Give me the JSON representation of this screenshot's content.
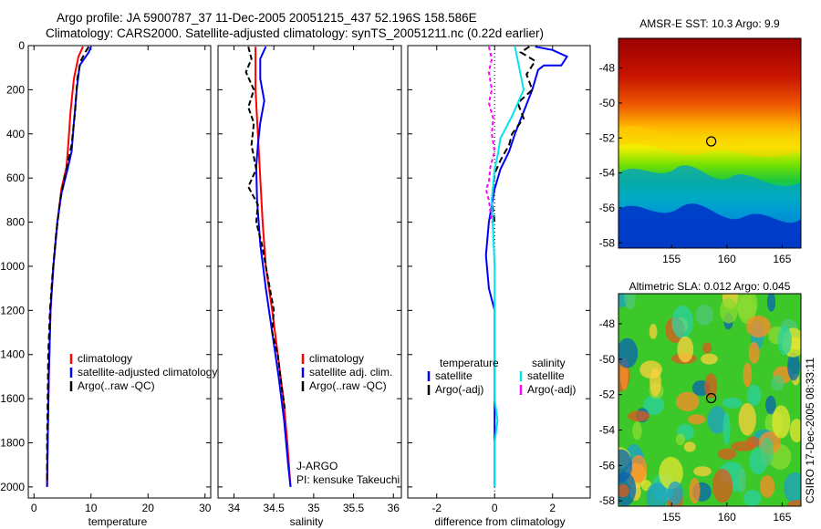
{
  "header": {
    "line1": "Argo profile: JA 5900787_37 11-Dec-2005 20051215_437 52.196S 158.586E",
    "line2": "Climatology: CARS2000. Satellite-adjusted climatology: synTS_20051211.nc (0.22d earlier)"
  },
  "colors": {
    "climatology": "#ff0000",
    "satellite": "#0000ff",
    "argo": "#000000",
    "sal_satellite": "#00e5ee",
    "sal_argo": "#ff00ff"
  },
  "chart_data": [
    {
      "type": "line",
      "id": "temperature",
      "xlabel": "temperature",
      "ylabel": "",
      "xlim": [
        -1,
        31
      ],
      "ylim": [
        2050,
        0
      ],
      "xticks": [
        0,
        10,
        20,
        30
      ],
      "yticks": [
        0,
        200,
        400,
        600,
        800,
        1000,
        1200,
        1400,
        1600,
        1800,
        2000
      ],
      "legend": {
        "placement": "bottom-right",
        "entries": [
          {
            "label": "climatology",
            "color_key": "climatology"
          },
          {
            "label": "satellite-adjusted climatology",
            "color_key": "satellite"
          },
          {
            "label": "Argo(..raw -QC)",
            "color_key": "argo"
          }
        ]
      },
      "series": [
        {
          "name": "climatology",
          "color_key": "climatology",
          "dash": "",
          "points": [
            [
              8.6,
              5
            ],
            [
              7.8,
              50
            ],
            [
              7.0,
              150
            ],
            [
              6.4,
              300
            ],
            [
              6.0,
              450
            ],
            [
              5.7,
              550
            ],
            [
              4.8,
              650
            ],
            [
              4.1,
              800
            ],
            [
              3.4,
              1000
            ],
            [
              2.9,
              1200
            ],
            [
              2.6,
              1500
            ],
            [
              2.4,
              1800
            ],
            [
              2.3,
              2000
            ]
          ]
        },
        {
          "name": "satellite-adjusted climatology",
          "color_key": "satellite",
          "dash": "",
          "points": [
            [
              10.0,
              5
            ],
            [
              9.6,
              30
            ],
            [
              8.0,
              90
            ],
            [
              7.5,
              200
            ],
            [
              7.0,
              350
            ],
            [
              6.6,
              480
            ],
            [
              5.8,
              570
            ],
            [
              4.8,
              670
            ],
            [
              4.1,
              800
            ],
            [
              3.4,
              1000
            ],
            [
              2.9,
              1200
            ],
            [
              2.6,
              1500
            ],
            [
              2.4,
              1800
            ],
            [
              2.3,
              2000
            ]
          ]
        },
        {
          "name": "Argo(..raw -QC)",
          "color_key": "argo",
          "dash": "7,4",
          "points": [
            [
              9.6,
              5
            ],
            [
              9.0,
              30
            ],
            [
              8.2,
              70
            ],
            [
              7.6,
              150
            ],
            [
              7.2,
              300
            ],
            [
              6.6,
              450
            ],
            [
              6.0,
              520
            ],
            [
              5.4,
              600
            ],
            [
              4.6,
              700
            ],
            [
              3.9,
              850
            ],
            [
              3.2,
              1050
            ],
            [
              2.8,
              1200
            ],
            [
              2.5,
              1400
            ],
            [
              2.4,
              1600
            ],
            [
              2.3,
              1800
            ],
            [
              2.3,
              1990
            ]
          ]
        }
      ]
    },
    {
      "type": "line",
      "id": "salinity",
      "xlabel": "salinity",
      "ylabel": "",
      "xlim": [
        33.8,
        36.1
      ],
      "ylim": [
        2050,
        0
      ],
      "xticks": [
        34,
        34.5,
        35,
        35.5,
        36
      ],
      "yticks": [
        0,
        200,
        400,
        600,
        800,
        1000,
        1200,
        1400,
        1600,
        1800,
        2000
      ],
      "legend": {
        "placement": "bottom-right",
        "entries": [
          {
            "label": "climatology",
            "color_key": "climatology"
          },
          {
            "label": "satellite adj. clim.",
            "color_key": "satellite"
          },
          {
            "label": "Argo(..raw -QC)",
            "color_key": "argo"
          }
        ]
      },
      "annotations": [
        "J-ARGO",
        "PI: kensuke Takeuchi"
      ],
      "series": [
        {
          "name": "climatology",
          "color_key": "climatology",
          "dash": "",
          "points": [
            [
              34.27,
              5
            ],
            [
              34.27,
              200
            ],
            [
              34.3,
              400
            ],
            [
              34.33,
              600
            ],
            [
              34.36,
              800
            ],
            [
              34.4,
              1000
            ],
            [
              34.48,
              1200
            ],
            [
              34.55,
              1400
            ],
            [
              34.62,
              1600
            ],
            [
              34.67,
              1800
            ],
            [
              34.71,
              2000
            ]
          ]
        },
        {
          "name": "satellite adj. clim.",
          "color_key": "satellite",
          "dash": "",
          "points": [
            [
              34.4,
              5
            ],
            [
              34.33,
              60
            ],
            [
              34.33,
              150
            ],
            [
              34.38,
              250
            ],
            [
              34.33,
              350
            ],
            [
              34.3,
              450
            ],
            [
              34.28,
              550
            ],
            [
              34.29,
              700
            ],
            [
              34.33,
              900
            ],
            [
              34.4,
              1100
            ],
            [
              34.48,
              1300
            ],
            [
              34.56,
              1500
            ],
            [
              34.63,
              1700
            ],
            [
              34.68,
              1900
            ],
            [
              34.71,
              2000
            ]
          ]
        },
        {
          "name": "Argo(..raw -QC)",
          "color_key": "argo",
          "dash": "6,3",
          "points": [
            [
              34.18,
              5
            ],
            [
              34.22,
              60
            ],
            [
              34.15,
              120
            ],
            [
              34.25,
              200
            ],
            [
              34.18,
              280
            ],
            [
              34.25,
              350
            ],
            [
              34.22,
              450
            ],
            [
              34.28,
              560
            ],
            [
              34.18,
              640
            ],
            [
              34.3,
              720
            ],
            [
              34.28,
              800
            ],
            [
              34.35,
              900
            ],
            [
              34.4,
              1000
            ],
            [
              34.45,
              1100
            ],
            [
              34.5,
              1200
            ],
            [
              34.48,
              1300
            ],
            [
              34.55,
              1400
            ],
            [
              34.6,
              1550
            ],
            [
              34.64,
              1650
            ]
          ]
        }
      ]
    },
    {
      "type": "line",
      "id": "difference",
      "xlabel": "difference from climatology",
      "ylabel": "",
      "xlim": [
        -3,
        3.3
      ],
      "ylim": [
        2050,
        0
      ],
      "xticks": [
        -2,
        0,
        2
      ],
      "yticks": [
        0,
        200,
        400,
        600,
        800,
        1000,
        1200,
        1400,
        1600,
        1800,
        2000
      ],
      "legend": {
        "placement": "bottom",
        "headers": [
          "temperature",
          "salinity"
        ],
        "entries": [
          {
            "label": "satellite",
            "color_key": "satellite",
            "column": 0
          },
          {
            "label": "Argo(-adj)",
            "color_key": "argo",
            "column": 0
          },
          {
            "label": "satellite",
            "color_key": "sal_satellite",
            "column": 1
          },
          {
            "label": "Argo(-adj)",
            "color_key": "sal_argo",
            "column": 1
          }
        ]
      },
      "series": [
        {
          "name": "temperature satellite",
          "color_key": "satellite",
          "dash": "",
          "points": [
            [
              1.4,
              5
            ],
            [
              2.0,
              20
            ],
            [
              2.5,
              50
            ],
            [
              2.3,
              90
            ],
            [
              1.7,
              90
            ],
            [
              1.5,
              110
            ],
            [
              1.3,
              200
            ],
            [
              1.0,
              300
            ],
            [
              0.7,
              400
            ],
            [
              0.5,
              480
            ],
            [
              0.2,
              560
            ],
            [
              0.0,
              650
            ],
            [
              -0.2,
              800
            ],
            [
              -0.3,
              950
            ],
            [
              -0.2,
              1100
            ],
            [
              0.0,
              1200
            ],
            [
              0.0,
              2000
            ]
          ]
        },
        {
          "name": "temperature Argo(-adj)",
          "color_key": "argo",
          "dash": "7,4",
          "points": [
            [
              1.2,
              5
            ],
            [
              0.9,
              30
            ],
            [
              1.4,
              70
            ],
            [
              1.1,
              130
            ],
            [
              1.3,
              200
            ],
            [
              0.8,
              260
            ],
            [
              1.0,
              330
            ],
            [
              0.6,
              400
            ],
            [
              0.5,
              450
            ],
            [
              0.2,
              520
            ],
            [
              0.0,
              580
            ],
            [
              -0.1,
              700
            ],
            [
              0.0,
              800
            ]
          ]
        },
        {
          "name": "salinity satellite",
          "color_key": "sal_satellite",
          "dash": "",
          "points": [
            [
              0.7,
              5
            ],
            [
              0.85,
              100
            ],
            [
              1.0,
              200
            ],
            [
              0.6,
              320
            ],
            [
              0.2,
              420
            ],
            [
              0.1,
              500
            ],
            [
              0.0,
              560
            ],
            [
              -0.1,
              700
            ],
            [
              0.0,
              1000
            ],
            [
              0.0,
              1600
            ],
            [
              0.1,
              1700
            ],
            [
              0.0,
              1800
            ],
            [
              0.0,
              2000
            ]
          ]
        },
        {
          "name": "salinity Argo(-adj)",
          "color_key": "sal_argo",
          "dash": "4,3",
          "points": [
            [
              -0.2,
              5
            ],
            [
              -0.1,
              60
            ],
            [
              -0.2,
              120
            ],
            [
              -0.1,
              200
            ],
            [
              -0.2,
              260
            ],
            [
              -0.05,
              330
            ],
            [
              -0.1,
              400
            ],
            [
              0.0,
              480
            ],
            [
              -0.15,
              550
            ],
            [
              -0.2,
              620
            ],
            [
              -0.3,
              650
            ],
            [
              -0.2,
              700
            ],
            [
              -0.1,
              800
            ]
          ]
        }
      ]
    },
    {
      "type": "heatmap",
      "id": "sst_map",
      "title": "AMSR-E SST: 10.3 Argo: 9.9",
      "xlim": [
        150.2,
        166.7
      ],
      "ylim": [
        -58.3,
        -46.3
      ],
      "xticks": [
        155,
        160,
        165
      ],
      "yticks": [
        -48,
        -50,
        -52,
        -54,
        -56,
        -58
      ],
      "marker": {
        "lon": 158.586,
        "lat": -52.196
      }
    },
    {
      "type": "heatmap",
      "id": "sla_map",
      "title": "Altimetric SLA: 0.012 Argo: 0.045",
      "xlim": [
        150.2,
        166.7
      ],
      "ylim": [
        -58.3,
        -46.3
      ],
      "xticks": [
        155,
        160,
        165
      ],
      "yticks": [
        -48,
        -50,
        -52,
        -54,
        -56,
        -58
      ],
      "marker": {
        "lon": 158.586,
        "lat": -52.196
      }
    }
  ],
  "footer": {
    "credit": "CSIRO 17-Dec-2005 08:33:11"
  }
}
